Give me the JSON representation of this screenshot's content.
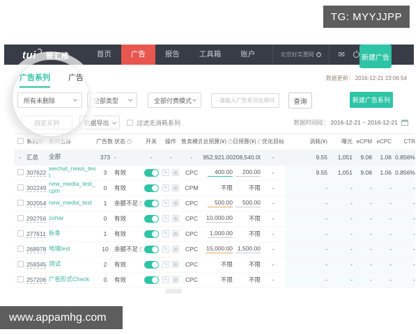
{
  "watermarks": {
    "tg": "TG: MYYJJPP",
    "site": "www.appamhg.com"
  },
  "icons": {
    "chart": "✎",
    "grid": "▦",
    "envelope": "✉"
  },
  "navbar": {
    "logo": "tui",
    "brand": "智汇推",
    "items": [
      {
        "key": "home",
        "label": "首页",
        "active": false
      },
      {
        "key": "ads",
        "label": "广告",
        "active": true
      },
      {
        "key": "report",
        "label": "报告",
        "active": false
      },
      {
        "key": "toolbox",
        "label": "工具箱",
        "active": false
      },
      {
        "key": "account",
        "label": "账户",
        "active": false
      }
    ],
    "account_name": "北京好实惠网",
    "new_ad_button": "新建广告"
  },
  "tabs": [
    {
      "key": "campaign",
      "label": "广告系列",
      "active": true
    },
    {
      "key": "ad",
      "label": "广告",
      "active": false
    }
  ],
  "data_updated": {
    "label": "数据更新：",
    "value": "2016-12-21 23:06:54"
  },
  "filters": {
    "selects": [
      {
        "key": "delete-filter",
        "value": "所有未删除"
      },
      {
        "key": "type-filter",
        "value": "全部类型"
      },
      {
        "key": "paymode-filter",
        "value": "全部付费模式"
      }
    ],
    "search_placeholder": "- 请输入广告系列名称/ID -",
    "search_button": "查询",
    "new_campaign_button": "新建广告系列"
  },
  "toolbar": {
    "custom_columns_button": "自定义列",
    "export_button": "数据导出",
    "filter_checkbox_label": "过滤无消耗系列",
    "date_label": "数据时间段：",
    "date_range": "2016-12-21 ~ 2016-12-21"
  },
  "table": {
    "headers": [
      {
        "label": "系列ID"
      },
      {
        "label": "系列名称"
      },
      {
        "label": "广告数",
        "info": true
      },
      {
        "label": "状态",
        "info": true
      },
      {
        "label": "开关"
      },
      {
        "label": "操作"
      },
      {
        "label": "售卖模式"
      },
      {
        "label": "总预算(¥)",
        "info": true
      },
      {
        "label": "日预算(¥)",
        "info": true
      },
      {
        "label": "优化目标"
      },
      {
        "label": "消耗(¥)"
      },
      {
        "label": "曝光"
      },
      {
        "label": "eCPM"
      },
      {
        "label": "eCPC"
      },
      {
        "label": "CTR"
      }
    ],
    "summary": {
      "check": "-",
      "id": "汇总",
      "name": "全部",
      "ads": "373",
      "status": "-",
      "switch": "-",
      "ops": "-",
      "mode": "-",
      "total": "952,921.00",
      "daily": "208,540.00",
      "goal": "-",
      "cost": "9.55",
      "imp": "1,051",
      "ecpm": "9.08",
      "ecpc": "1.06",
      "ctr": "0.856%"
    },
    "rows": [
      {
        "id": "307622",
        "name": "wechat_news_test",
        "ads": "3",
        "status": "有效",
        "status_info": false,
        "mode": "CPC",
        "total": "400.00",
        "total_u": "teal",
        "daily": "200.00",
        "daily_u": "gray",
        "goal": "-",
        "cost": "9.55",
        "imp": "1,051",
        "ecpm": "9.08",
        "ecpc": "1.06",
        "ctr": "0.856%"
      },
      {
        "id": "302249",
        "name": "new_media_test_cpm",
        "ads": "0",
        "status": "有效",
        "status_info": false,
        "mode": "CPM",
        "total": "不限",
        "daily": "不限",
        "goal": "-",
        "cost": "-",
        "imp": "-",
        "ecpm": "-",
        "ecpc": "-",
        "ctr": "-"
      },
      {
        "id": "302054",
        "name": "new_media_test",
        "ads": "1",
        "status": "余额不足",
        "status_info": true,
        "mode": "CPC",
        "total": "500.00",
        "total_u": "orange",
        "daily": "500.00",
        "daily_u": "gray",
        "goal": "-",
        "cost": "-",
        "imp": "-",
        "ecpm": "-",
        "ecpc": "-",
        "ctr": "-"
      },
      {
        "id": "292756",
        "name": "zohar",
        "ads": "0",
        "status": "有效",
        "status_info": false,
        "mode": "CPC",
        "total": "10,000.00",
        "total_u": "gray",
        "daily": "不限",
        "goal": "-",
        "cost": "-",
        "imp": "-",
        "ecpm": "-",
        "ecpc": "-",
        "ctr": "-"
      },
      {
        "id": "277611",
        "name": "秋季",
        "ads": "1",
        "status": "有效",
        "status_info": false,
        "mode": "CPC",
        "total": "1,000.00",
        "total_u": "gray",
        "daily": "不限",
        "goal": "-",
        "cost": "-",
        "imp": "-",
        "ecpm": "-",
        "ecpc": "-",
        "ctr": "-"
      },
      {
        "id": "268978",
        "name": "地域test",
        "ads": "10",
        "status": "余额不足",
        "status_info": true,
        "mode": "CPC",
        "total": "15,000.00",
        "total_u": "orange",
        "daily": "1,500.00",
        "daily_u": "gray",
        "goal": "-",
        "cost": "-",
        "imp": "-",
        "ecpm": "-",
        "ecpc": "-",
        "ctr": "-"
      },
      {
        "id": "258345",
        "name": "测试",
        "ads": "2",
        "status": "有效",
        "status_info": false,
        "mode": "CPC",
        "total": "不限",
        "daily": "不限",
        "goal": "-",
        "cost": "-",
        "imp": "-",
        "ecpm": "-",
        "ecpc": "-",
        "ctr": "-"
      },
      {
        "id": "257206",
        "name": "广告形式Check",
        "ads": "0",
        "status": "有效",
        "status_info": false,
        "mode": "CPC",
        "total": "不限",
        "daily": "不限",
        "goal": "-",
        "cost": "-",
        "imp": "-",
        "ecpm": "-",
        "ecpc": "-",
        "ctr": "-"
      }
    ]
  },
  "colors": {
    "teal": "#2ec4a5",
    "nav-red": "#e8574f",
    "nav-bg": "#373c46",
    "link": "#3db39a",
    "orange": "#e2a45c"
  }
}
